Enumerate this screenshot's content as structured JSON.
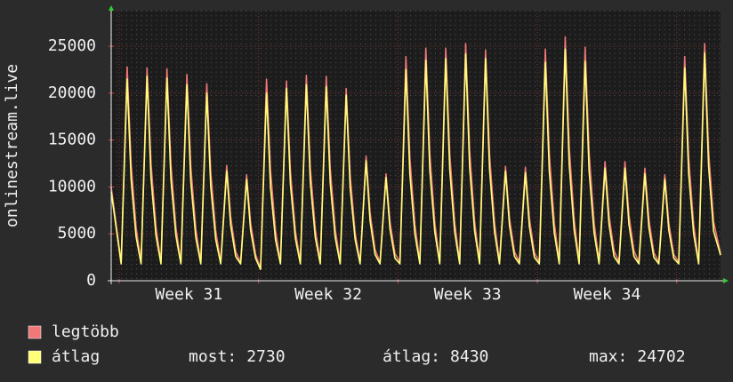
{
  "chart_data": {
    "type": "line",
    "y_label": "onlinestream.live",
    "xlim": [
      0,
      30.6
    ],
    "ylim": [
      0,
      28800
    ],
    "yticks": [
      0,
      5000,
      10000,
      15000,
      20000,
      25000
    ],
    "xticks": [
      {
        "value": 3.9,
        "label": "Week 31"
      },
      {
        "value": 10.9,
        "label": "Week 32"
      },
      {
        "value": 17.9,
        "label": "Week 33"
      },
      {
        "value": 24.9,
        "label": "Week 34"
      }
    ],
    "x_major_grid": [
      0.4,
      7.4,
      14.4,
      21.4,
      28.4
    ],
    "grid": true,
    "x": [
      0,
      0.5,
      0.8,
      1,
      1.25,
      1.5,
      1.8,
      2,
      2.25,
      2.5,
      2.8,
      3,
      3.25,
      3.5,
      3.8,
      4,
      4.25,
      4.5,
      4.8,
      5,
      5.25,
      5.5,
      5.8,
      6,
      6.25,
      6.5,
      6.8,
      7,
      7.25,
      7.5,
      7.8,
      8,
      8.25,
      8.5,
      8.8,
      9,
      9.25,
      9.5,
      9.8,
      10,
      10.25,
      10.5,
      10.8,
      11,
      11.25,
      11.5,
      11.8,
      12,
      12.25,
      12.5,
      12.8,
      13,
      13.25,
      13.5,
      13.8,
      14,
      14.25,
      14.5,
      14.8,
      15,
      15.25,
      15.5,
      15.8,
      16,
      16.25,
      16.5,
      16.8,
      17,
      17.25,
      17.5,
      17.8,
      18,
      18.25,
      18.5,
      18.8,
      19,
      19.25,
      19.5,
      19.8,
      20,
      20.25,
      20.5,
      20.8,
      21,
      21.25,
      21.5,
      21.8,
      22,
      22.25,
      22.5,
      22.8,
      23,
      23.25,
      23.5,
      23.8,
      24,
      24.25,
      24.5,
      24.8,
      25,
      25.25,
      25.5,
      25.8,
      26,
      26.25,
      26.5,
      26.8,
      27,
      27.25,
      27.5,
      27.8,
      28,
      28.25,
      28.5,
      28.8,
      29,
      29.25,
      29.5,
      29.8,
      30,
      30.25,
      30.6
    ],
    "series": [
      {
        "name": "legtöbb",
        "color": "#f07878",
        "values": [
          10000,
          2000,
          22800,
          12500,
          5700,
          2000,
          22700,
          12500,
          5700,
          2000,
          22600,
          12400,
          5700,
          2000,
          22000,
          12100,
          5500,
          2000,
          21000,
          11600,
          5300,
          2000,
          12300,
          6800,
          3100,
          2000,
          11300,
          6200,
          2800,
          1300,
          21500,
          11800,
          5400,
          2000,
          21300,
          11700,
          5300,
          2000,
          21900,
          12000,
          5500,
          2000,
          21800,
          12000,
          5500,
          2000,
          20500,
          11300,
          5100,
          2000,
          13300,
          7300,
          3300,
          2000,
          11400,
          6300,
          2900,
          2000,
          23900,
          13100,
          6000,
          2000,
          24800,
          13600,
          6200,
          2000,
          24800,
          13600,
          6200,
          2000,
          25300,
          13900,
          6300,
          2000,
          24600,
          13500,
          6200,
          2000,
          12200,
          6700,
          3100,
          2000,
          12100,
          6700,
          3000,
          2000,
          24700,
          13600,
          6200,
          2000,
          26000,
          14300,
          6500,
          2000,
          24900,
          13700,
          6200,
          2000,
          12700,
          7000,
          3200,
          2000,
          12700,
          7000,
          3200,
          2000,
          12000,
          6600,
          3000,
          2000,
          11300,
          6200,
          2800,
          2000,
          23900,
          13100,
          6000,
          2000,
          25300,
          13900,
          6300,
          2900
        ]
      },
      {
        "name": "átlag",
        "color": "#ffff78",
        "values": [
          9500,
          1800,
          21500,
          10800,
          4700,
          1800,
          21800,
          10900,
          4800,
          1800,
          21600,
          10800,
          4800,
          1800,
          20900,
          10500,
          4600,
          1800,
          20000,
          10000,
          4400,
          1800,
          11700,
          5900,
          2600,
          1800,
          10800,
          5400,
          2400,
          1200,
          20000,
          10000,
          4400,
          1800,
          20500,
          10300,
          4500,
          1800,
          20900,
          10500,
          4600,
          1800,
          20700,
          10400,
          4600,
          1800,
          19800,
          9900,
          4400,
          1800,
          12800,
          6400,
          2800,
          1800,
          11000,
          5500,
          2400,
          1800,
          22500,
          11300,
          5000,
          1800,
          23500,
          11800,
          5200,
          1800,
          23700,
          11900,
          5200,
          1800,
          24200,
          12100,
          5300,
          1800,
          23700,
          11900,
          5200,
          1800,
          11700,
          5900,
          2600,
          1800,
          11500,
          5800,
          2500,
          1800,
          23300,
          11700,
          5100,
          1800,
          24700,
          12400,
          5400,
          1800,
          23400,
          11700,
          5100,
          1800,
          12000,
          6000,
          2600,
          1800,
          12000,
          6000,
          2600,
          1800,
          11400,
          5700,
          2500,
          1800,
          10800,
          5400,
          2400,
          1800,
          22700,
          11400,
          5000,
          1800,
          24300,
          12200,
          5300,
          2730
        ]
      }
    ],
    "stats": [
      {
        "label": "most:",
        "value": 2730
      },
      {
        "label": "átlag:",
        "value": 8430
      },
      {
        "label": "max:",
        "value": 24702
      }
    ]
  }
}
